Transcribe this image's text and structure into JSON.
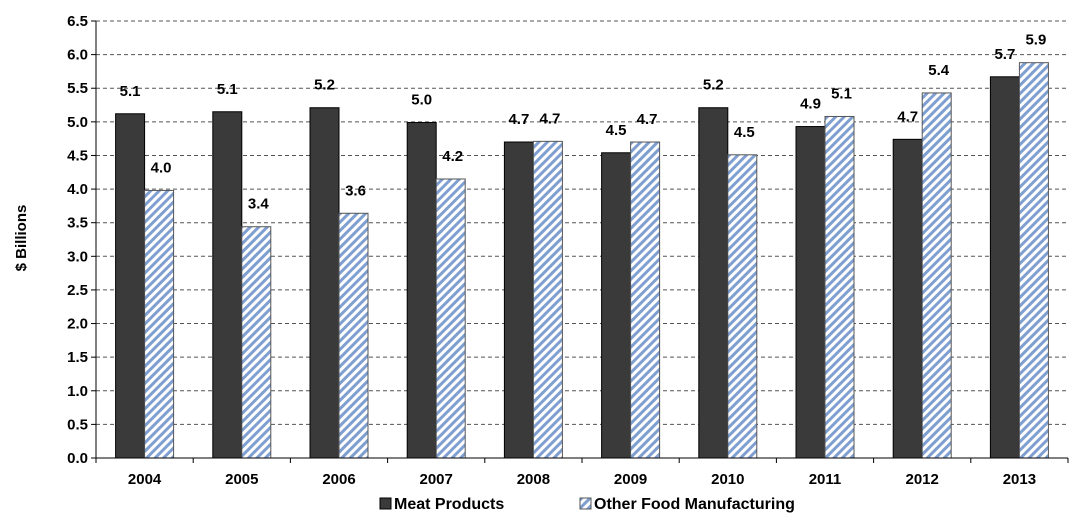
{
  "chart_data": {
    "type": "bar",
    "title": "",
    "xlabel": "",
    "ylabel": "$ Billions",
    "ylim": [
      0,
      6.5
    ],
    "ytick_step": 0.5,
    "y_tick_labels": [
      "0.0",
      "0.5",
      "1.0",
      "1.5",
      "2.0",
      "2.5",
      "3.0",
      "3.5",
      "4.0",
      "4.5",
      "5.0",
      "5.5",
      "6.0",
      "6.5"
    ],
    "grid": "horizontal dashed",
    "legend_position": "bottom",
    "categories": [
      "2004",
      "2005",
      "2006",
      "2007",
      "2008",
      "2009",
      "2010",
      "2011",
      "2012",
      "2013"
    ],
    "series": [
      {
        "name": "Meat Products",
        "color": "#3a3a3a",
        "pattern": "solid",
        "values": [
          5.12,
          5.15,
          5.21,
          4.99,
          4.7,
          4.54,
          5.21,
          4.93,
          4.74,
          5.67
        ],
        "labels": [
          "5.1",
          "5.1",
          "5.2",
          "5.0",
          "4.7",
          "4.5",
          "5.2",
          "4.9",
          "4.7",
          "5.7"
        ]
      },
      {
        "name": "Other Food Manufacturing",
        "color": "#7f9fd0",
        "pattern": "diagonal-hatch",
        "values": [
          3.98,
          3.44,
          3.64,
          4.15,
          4.71,
          4.7,
          4.51,
          5.08,
          5.43,
          5.88
        ],
        "labels": [
          "4.0",
          "3.4",
          "3.6",
          "4.2",
          "4.7",
          "4.7",
          "4.5",
          "5.1",
          "5.4",
          "5.9"
        ]
      }
    ]
  }
}
